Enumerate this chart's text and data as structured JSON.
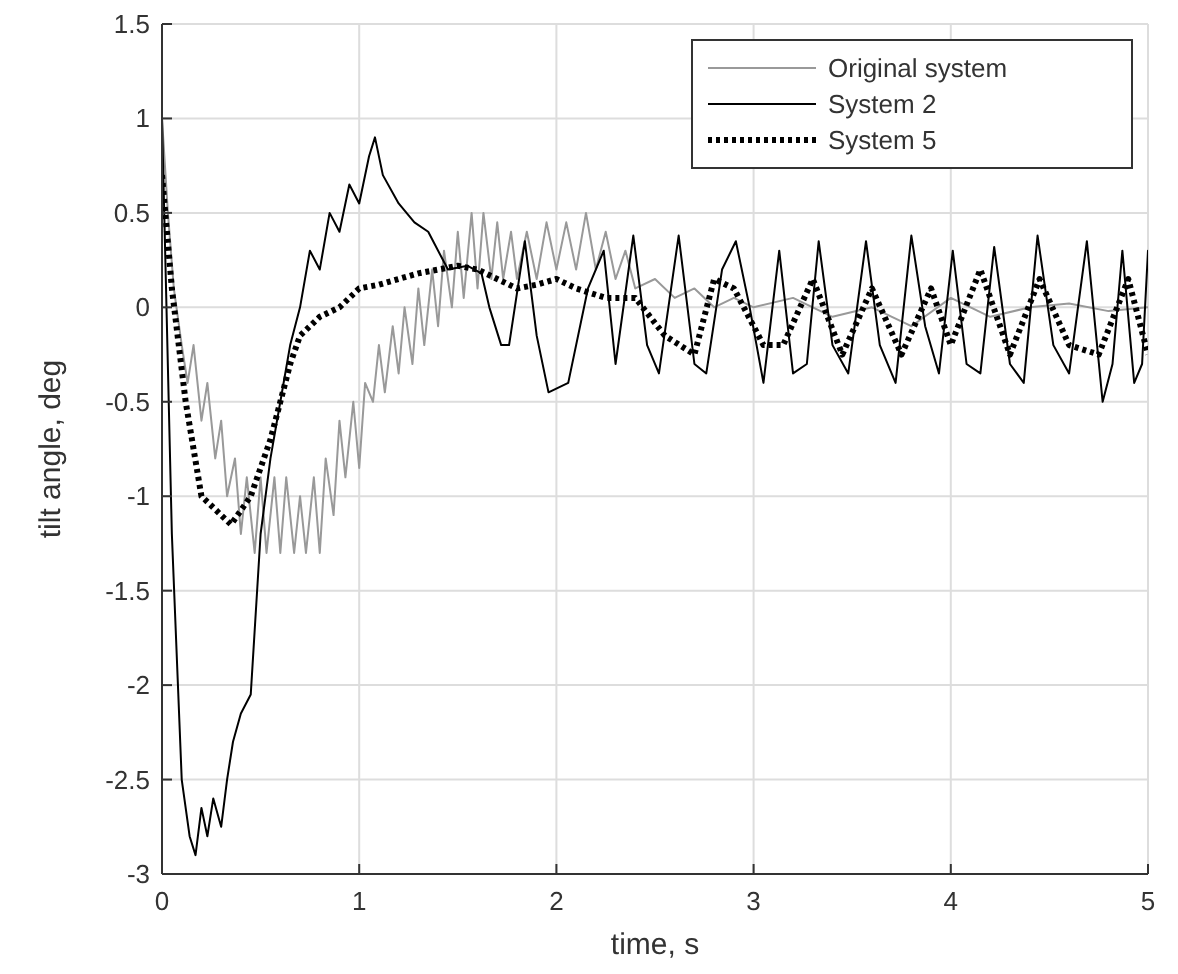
{
  "chart_data": {
    "type": "line",
    "xlabel": "time, s",
    "ylabel": "tilt angle, deg",
    "xlim": [
      0,
      5
    ],
    "ylim": [
      -3,
      1.5
    ],
    "xticks": [
      0,
      1,
      2,
      3,
      4,
      5
    ],
    "yticks": [
      -3,
      -2.5,
      -2,
      -1.5,
      -1,
      -0.5,
      0,
      0.5,
      1,
      1.5
    ],
    "grid": true,
    "legend": "top right",
    "marker": "none",
    "series": [
      {
        "name": "Original system",
        "color": "#999999",
        "line_style": "solid",
        "x": [
          0,
          0.03,
          0.06,
          0.1,
          0.13,
          0.16,
          0.2,
          0.23,
          0.27,
          0.3,
          0.33,
          0.37,
          0.4,
          0.43,
          0.47,
          0.5,
          0.53,
          0.57,
          0.6,
          0.63,
          0.67,
          0.7,
          0.73,
          0.77,
          0.8,
          0.83,
          0.87,
          0.9,
          0.93,
          0.97,
          1.0,
          1.03,
          1.07,
          1.1,
          1.13,
          1.17,
          1.2,
          1.23,
          1.27,
          1.3,
          1.33,
          1.37,
          1.4,
          1.43,
          1.47,
          1.5,
          1.53,
          1.57,
          1.6,
          1.63,
          1.67,
          1.7,
          1.73,
          1.77,
          1.8,
          1.85,
          1.9,
          1.95,
          2.0,
          2.05,
          2.1,
          2.15,
          2.2,
          2.25,
          2.3,
          2.35,
          2.4,
          2.5,
          2.6,
          2.7,
          2.8,
          2.9,
          3.0,
          3.2,
          3.4,
          3.6,
          3.8,
          4.0,
          4.2,
          4.4,
          4.6,
          4.8,
          5.0
        ],
        "values": [
          1,
          0.5,
          0.1,
          -0.2,
          -0.4,
          -0.2,
          -0.6,
          -0.4,
          -0.8,
          -0.6,
          -1.0,
          -0.8,
          -1.2,
          -0.9,
          -1.3,
          -0.9,
          -1.3,
          -0.9,
          -1.3,
          -0.9,
          -1.3,
          -1.0,
          -1.3,
          -0.9,
          -1.3,
          -0.8,
          -1.1,
          -0.6,
          -0.9,
          -0.5,
          -0.85,
          -0.4,
          -0.5,
          -0.2,
          -0.45,
          -0.1,
          -0.35,
          0.0,
          -0.3,
          0.1,
          -0.2,
          0.2,
          -0.1,
          0.3,
          0.0,
          0.4,
          0.05,
          0.5,
          0.1,
          0.5,
          0.15,
          0.45,
          0.15,
          0.4,
          0.15,
          0.4,
          0.15,
          0.45,
          0.2,
          0.45,
          0.2,
          0.5,
          0.2,
          0.4,
          0.15,
          0.3,
          0.1,
          0.15,
          0.05,
          0.1,
          0.0,
          0.05,
          0.0,
          0.05,
          -0.05,
          0.0,
          -0.1,
          0.05,
          -0.05,
          0.0,
          0.02,
          -0.02,
          0.0
        ]
      },
      {
        "name": "System 2",
        "color": "#000000",
        "line_style": "solid",
        "x": [
          0,
          0.05,
          0.1,
          0.14,
          0.17,
          0.2,
          0.23,
          0.26,
          0.3,
          0.33,
          0.36,
          0.4,
          0.45,
          0.5,
          0.55,
          0.6,
          0.65,
          0.7,
          0.75,
          0.8,
          0.85,
          0.9,
          0.95,
          1.0,
          1.05,
          1.08,
          1.12,
          1.2,
          1.28,
          1.35,
          1.45,
          1.55,
          1.62,
          1.66,
          1.72,
          1.76,
          1.84,
          1.9,
          1.96,
          2.06,
          2.16,
          2.24,
          2.3,
          2.39,
          2.46,
          2.52,
          2.62,
          2.7,
          2.76,
          2.84,
          2.91,
          2.98,
          3.05,
          3.13,
          3.2,
          3.27,
          3.33,
          3.4,
          3.48,
          3.57,
          3.64,
          3.72,
          3.8,
          3.87,
          3.94,
          4.01,
          4.08,
          4.15,
          4.22,
          4.3,
          4.37,
          4.44,
          4.52,
          4.6,
          4.69,
          4.77,
          4.82,
          4.87,
          4.93,
          4.97,
          5.0
        ],
        "values": [
          1,
          -1.2,
          -2.5,
          -2.8,
          -2.9,
          -2.65,
          -2.8,
          -2.6,
          -2.75,
          -2.5,
          -2.3,
          -2.15,
          -2.05,
          -1.2,
          -0.8,
          -0.5,
          -0.2,
          0.0,
          0.3,
          0.2,
          0.5,
          0.4,
          0.65,
          0.55,
          0.8,
          0.9,
          0.7,
          0.55,
          0.45,
          0.4,
          0.2,
          0.22,
          0.18,
          0.0,
          -0.2,
          -0.2,
          0.35,
          -0.15,
          -0.45,
          -0.4,
          0.1,
          0.3,
          -0.3,
          0.38,
          -0.2,
          -0.35,
          0.38,
          -0.3,
          -0.35,
          0.2,
          0.35,
          0.0,
          -0.4,
          0.3,
          -0.35,
          -0.3,
          0.35,
          -0.2,
          -0.35,
          0.35,
          -0.2,
          -0.4,
          0.38,
          -0.1,
          -0.35,
          0.3,
          -0.3,
          -0.35,
          0.32,
          -0.3,
          -0.4,
          0.38,
          -0.2,
          -0.35,
          0.35,
          -0.5,
          -0.3,
          0.3,
          -0.4,
          -0.3,
          0.3
        ]
      },
      {
        "name": "System 5",
        "color": "#000000",
        "line_style": "dotted",
        "x": [
          0,
          0.05,
          0.12,
          0.2,
          0.3,
          0.35,
          0.45,
          0.55,
          0.6,
          0.65,
          0.7,
          0.8,
          0.9,
          1.0,
          1.1,
          1.2,
          1.3,
          1.4,
          1.5,
          1.6,
          1.7,
          1.8,
          1.9,
          2.0,
          2.1,
          2.25,
          2.4,
          2.55,
          2.7,
          2.8,
          2.9,
          3.05,
          3.15,
          3.3,
          3.45,
          3.6,
          3.75,
          3.9,
          4.0,
          4.15,
          4.3,
          4.45,
          4.6,
          4.75,
          4.9,
          5.0
        ],
        "values": [
          0.7,
          0.1,
          -0.5,
          -1.0,
          -1.1,
          -1.15,
          -1.0,
          -0.7,
          -0.5,
          -0.3,
          -0.15,
          -0.05,
          0.0,
          0.1,
          0.12,
          0.15,
          0.18,
          0.2,
          0.22,
          0.2,
          0.15,
          0.1,
          0.12,
          0.15,
          0.1,
          0.05,
          0.05,
          -0.15,
          -0.25,
          0.15,
          0.1,
          -0.2,
          -0.2,
          0.15,
          -0.25,
          0.1,
          -0.25,
          0.1,
          -0.2,
          0.2,
          -0.25,
          0.15,
          -0.2,
          -0.25,
          0.15,
          -0.25
        ]
      }
    ]
  }
}
